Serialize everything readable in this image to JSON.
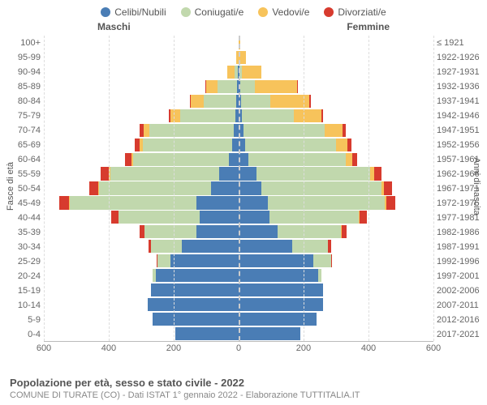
{
  "legend": [
    {
      "label": "Celibi/Nubili",
      "color": "#4a7db5"
    },
    {
      "label": "Coniugati/e",
      "color": "#c1d8ad"
    },
    {
      "label": "Vedovi/e",
      "color": "#f7c35b"
    },
    {
      "label": "Divorziati/e",
      "color": "#d73b2e"
    }
  ],
  "headers": {
    "male": "Maschi",
    "female": "Femmine"
  },
  "y_axis_left_title": "Fasce di età",
  "y_axis_right_title": "Anni di nascita",
  "age_labels": [
    "100+",
    "95-99",
    "90-94",
    "85-89",
    "80-84",
    "75-79",
    "70-74",
    "65-69",
    "60-64",
    "55-59",
    "50-54",
    "45-49",
    "40-44",
    "35-39",
    "30-34",
    "25-29",
    "20-24",
    "15-19",
    "10-14",
    "5-9",
    "0-4"
  ],
  "birth_labels": [
    "≤ 1921",
    "1922-1926",
    "1927-1931",
    "1932-1936",
    "1937-1941",
    "1942-1946",
    "1947-1951",
    "1952-1956",
    "1957-1961",
    "1962-1966",
    "1967-1971",
    "1972-1976",
    "1977-1981",
    "1982-1986",
    "1987-1991",
    "1992-1996",
    "1997-2001",
    "2002-2006",
    "2007-2011",
    "2012-2016",
    "2017-2021"
  ],
  "x_ticks": [
    -600,
    -400,
    -200,
    0,
    200,
    400,
    600
  ],
  "x_tick_labels": [
    "600",
    "400",
    "200",
    "0",
    "200",
    "400",
    "600"
  ],
  "x_max": 600,
  "colors": {
    "celibi": "#4a7db5",
    "coniugati": "#c1d8ad",
    "vedovi": "#f7c35b",
    "divorziati": "#d73b2e",
    "grid": "#dddddd",
    "center": "#cccccc",
    "background": "#ffffff",
    "text": "#666666"
  },
  "data": [
    {
      "m": [
        0,
        0,
        1,
        0
      ],
      "f": [
        0,
        0,
        5,
        0
      ]
    },
    {
      "m": [
        0,
        1,
        7,
        0
      ],
      "f": [
        0,
        1,
        22,
        0
      ]
    },
    {
      "m": [
        3,
        10,
        22,
        0
      ],
      "f": [
        2,
        8,
        60,
        0
      ]
    },
    {
      "m": [
        6,
        60,
        35,
        2
      ],
      "f": [
        5,
        45,
        130,
        3
      ]
    },
    {
      "m": [
        8,
        100,
        40,
        3
      ],
      "f": [
        8,
        90,
        120,
        4
      ]
    },
    {
      "m": [
        10,
        170,
        30,
        5
      ],
      "f": [
        10,
        160,
        85,
        5
      ]
    },
    {
      "m": [
        15,
        260,
        18,
        12
      ],
      "f": [
        15,
        250,
        55,
        10
      ]
    },
    {
      "m": [
        20,
        275,
        10,
        15
      ],
      "f": [
        20,
        280,
        35,
        12
      ]
    },
    {
      "m": [
        30,
        295,
        6,
        18
      ],
      "f": [
        30,
        300,
        20,
        16
      ]
    },
    {
      "m": [
        60,
        335,
        4,
        25
      ],
      "f": [
        55,
        350,
        12,
        22
      ]
    },
    {
      "m": [
        85,
        345,
        3,
        28
      ],
      "f": [
        70,
        370,
        8,
        25
      ]
    },
    {
      "m": [
        130,
        390,
        2,
        30
      ],
      "f": [
        90,
        360,
        5,
        28
      ]
    },
    {
      "m": [
        120,
        250,
        1,
        22
      ],
      "f": [
        95,
        275,
        3,
        22
      ]
    },
    {
      "m": [
        130,
        160,
        0,
        15
      ],
      "f": [
        120,
        195,
        2,
        15
      ]
    },
    {
      "m": [
        175,
        95,
        0,
        8
      ],
      "f": [
        165,
        110,
        1,
        10
      ]
    },
    {
      "m": [
        210,
        40,
        0,
        2
      ],
      "f": [
        230,
        55,
        0,
        3
      ]
    },
    {
      "m": [
        255,
        10,
        0,
        0
      ],
      "f": [
        245,
        10,
        0,
        0
      ]
    },
    {
      "m": [
        270,
        0,
        0,
        0
      ],
      "f": [
        260,
        0,
        0,
        0
      ]
    },
    {
      "m": [
        280,
        0,
        0,
        0
      ],
      "f": [
        260,
        0,
        0,
        0
      ]
    },
    {
      "m": [
        265,
        0,
        0,
        0
      ],
      "f": [
        240,
        0,
        0,
        0
      ]
    },
    {
      "m": [
        195,
        0,
        0,
        0
      ],
      "f": [
        190,
        0,
        0,
        0
      ]
    }
  ],
  "footer": {
    "title": "Popolazione per età, sesso e stato civile - 2022",
    "subtitle": "COMUNE DI TURATE (CO) - Dati ISTAT 1° gennaio 2022 - Elaborazione TUTTITALIA.IT"
  },
  "label_fontsize": 11,
  "title_fontsize": 13
}
